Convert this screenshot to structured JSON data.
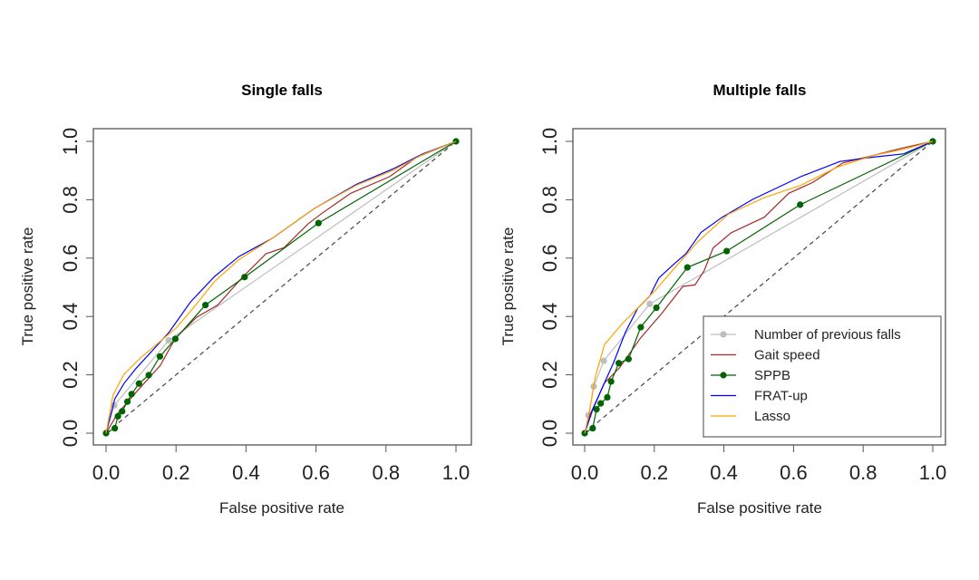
{
  "chart_data": [
    {
      "type": "line",
      "title": "Single falls",
      "xlabel": "False positive rate",
      "ylabel": "True positive rate",
      "xlim": [
        0,
        1
      ],
      "ylim": [
        0,
        1
      ],
      "xticks": [
        "0.0",
        "0.2",
        "0.4",
        "0.6",
        "0.8",
        "1.0"
      ],
      "yticks": [
        "0.0",
        "0.2",
        "0.4",
        "0.6",
        "0.8",
        "1.0"
      ],
      "grid": false,
      "reference_line": "dashed diagonal",
      "series": [
        {
          "name": "Number of previous falls",
          "color": "#bebebe",
          "markers": true,
          "points": [
            [
              0,
              0
            ],
            [
              0.023,
              0.095
            ],
            [
              0.179,
              0.318
            ],
            [
              1,
              1
            ]
          ]
        },
        {
          "name": "Gait speed",
          "color": "#a52a2a",
          "markers": false,
          "points": [
            [
              0,
              0
            ],
            [
              0.033,
              0.067
            ],
            [
              0.085,
              0.139
            ],
            [
              0.155,
              0.232
            ],
            [
              0.198,
              0.325
            ],
            [
              0.258,
              0.397
            ],
            [
              0.319,
              0.439
            ],
            [
              0.388,
              0.532
            ],
            [
              0.457,
              0.615
            ],
            [
              0.509,
              0.636
            ],
            [
              0.578,
              0.718
            ],
            [
              0.612,
              0.749
            ],
            [
              0.699,
              0.822
            ],
            [
              0.81,
              0.879
            ],
            [
              0.888,
              0.946
            ],
            [
              1,
              1
            ]
          ]
        },
        {
          "name": "SPPB",
          "color": "#006400",
          "markers": true,
          "points": [
            [
              0,
              0
            ],
            [
              0.025,
              0.017
            ],
            [
              0.034,
              0.058
            ],
            [
              0.046,
              0.075
            ],
            [
              0.061,
              0.108
            ],
            [
              0.073,
              0.134
            ],
            [
              0.094,
              0.17
            ],
            [
              0.122,
              0.199
            ],
            [
              0.154,
              0.263
            ],
            [
              0.198,
              0.323
            ],
            [
              0.284,
              0.439
            ],
            [
              0.396,
              0.535
            ],
            [
              0.607,
              0.72
            ],
            [
              1,
              1
            ]
          ]
        },
        {
          "name": "FRAT-up",
          "color": "#0000ff",
          "markers": false,
          "points": [
            [
              0,
              0
            ],
            [
              0.025,
              0.118
            ],
            [
              0.051,
              0.17
            ],
            [
              0.085,
              0.221
            ],
            [
              0.137,
              0.289
            ],
            [
              0.18,
              0.346
            ],
            [
              0.241,
              0.449
            ],
            [
              0.31,
              0.537
            ],
            [
              0.379,
              0.605
            ],
            [
              0.474,
              0.667
            ],
            [
              0.595,
              0.77
            ],
            [
              0.716,
              0.853
            ],
            [
              0.819,
              0.905
            ],
            [
              0.905,
              0.957
            ],
            [
              1,
              1
            ]
          ]
        },
        {
          "name": "Lasso",
          "color": "#ffa500",
          "markers": false,
          "points": [
            [
              0,
              0
            ],
            [
              0.02,
              0.13
            ],
            [
              0.05,
              0.2
            ],
            [
              0.1,
              0.26
            ],
            [
              0.15,
              0.31
            ],
            [
              0.2,
              0.36
            ],
            [
              0.25,
              0.43
            ],
            [
              0.31,
              0.52
            ],
            [
              0.38,
              0.595
            ],
            [
              0.474,
              0.667
            ],
            [
              0.595,
              0.77
            ],
            [
              0.716,
              0.85
            ],
            [
              0.819,
              0.9
            ],
            [
              0.905,
              0.955
            ],
            [
              1,
              1
            ]
          ]
        }
      ]
    },
    {
      "type": "line",
      "title": "Multiple falls",
      "xlabel": "False positive rate",
      "ylabel": "True positive rate",
      "xlim": [
        0,
        1
      ],
      "ylim": [
        0,
        1
      ],
      "xticks": [
        "0.0",
        "0.2",
        "0.4",
        "0.6",
        "0.8",
        "1.0"
      ],
      "yticks": [
        "0.0",
        "0.2",
        "0.4",
        "0.6",
        "0.8",
        "1.0"
      ],
      "grid": false,
      "reference_line": "dashed diagonal",
      "legend": "bottom-right",
      "series": [
        {
          "name": "Number of previous falls",
          "color": "#bebebe",
          "markers": true,
          "points": [
            [
              0,
              0
            ],
            [
              0.011,
              0.061
            ],
            [
              0.026,
              0.16
            ],
            [
              0.055,
              0.248
            ],
            [
              0.187,
              0.443
            ],
            [
              1,
              1
            ]
          ]
        },
        {
          "name": "Gait speed",
          "color": "#a52a2a",
          "markers": false,
          "points": [
            [
              0,
              0
            ],
            [
              0.013,
              0.058
            ],
            [
              0.057,
              0.172
            ],
            [
              0.1,
              0.224
            ],
            [
              0.161,
              0.327
            ],
            [
              0.221,
              0.41
            ],
            [
              0.282,
              0.503
            ],
            [
              0.317,
              0.508
            ],
            [
              0.343,
              0.556
            ],
            [
              0.369,
              0.635
            ],
            [
              0.421,
              0.687
            ],
            [
              0.516,
              0.74
            ],
            [
              0.586,
              0.822
            ],
            [
              0.655,
              0.859
            ],
            [
              0.742,
              0.926
            ],
            [
              0.829,
              0.952
            ],
            [
              0.916,
              0.978
            ],
            [
              1,
              1
            ]
          ]
        },
        {
          "name": "SPPB",
          "color": "#006400",
          "markers": true,
          "points": [
            [
              0,
              0
            ],
            [
              0.023,
              0.017
            ],
            [
              0.034,
              0.082
            ],
            [
              0.046,
              0.102
            ],
            [
              0.065,
              0.123
            ],
            [
              0.076,
              0.177
            ],
            [
              0.098,
              0.24
            ],
            [
              0.126,
              0.254
            ],
            [
              0.161,
              0.363
            ],
            [
              0.206,
              0.43
            ],
            [
              0.295,
              0.568
            ],
            [
              0.408,
              0.624
            ],
            [
              0.619,
              0.783
            ],
            [
              1,
              1
            ]
          ]
        },
        {
          "name": "FRAT-up",
          "color": "#0000ff",
          "markers": false,
          "points": [
            [
              0,
              0
            ],
            [
              0.022,
              0.077
            ],
            [
              0.048,
              0.149
            ],
            [
              0.083,
              0.242
            ],
            [
              0.117,
              0.346
            ],
            [
              0.152,
              0.428
            ],
            [
              0.187,
              0.47
            ],
            [
              0.213,
              0.532
            ],
            [
              0.256,
              0.579
            ],
            [
              0.291,
              0.615
            ],
            [
              0.334,
              0.688
            ],
            [
              0.395,
              0.74
            ],
            [
              0.482,
              0.801
            ],
            [
              0.62,
              0.879
            ],
            [
              0.733,
              0.931
            ],
            [
              0.829,
              0.946
            ],
            [
              0.916,
              0.957
            ],
            [
              1,
              1
            ]
          ]
        },
        {
          "name": "Lasso",
          "color": "#ffa500",
          "markers": false,
          "points": [
            [
              0,
              0
            ],
            [
              0.013,
              0.068
            ],
            [
              0.03,
              0.19
            ],
            [
              0.057,
              0.304
            ],
            [
              0.109,
              0.377
            ],
            [
              0.161,
              0.439
            ],
            [
              0.204,
              0.491
            ],
            [
              0.256,
              0.563
            ],
            [
              0.326,
              0.657
            ],
            [
              0.412,
              0.75
            ],
            [
              0.516,
              0.807
            ],
            [
              0.62,
              0.849
            ],
            [
              0.724,
              0.911
            ],
            [
              0.829,
              0.952
            ],
            [
              0.916,
              0.973
            ],
            [
              1,
              1
            ]
          ]
        }
      ]
    }
  ]
}
